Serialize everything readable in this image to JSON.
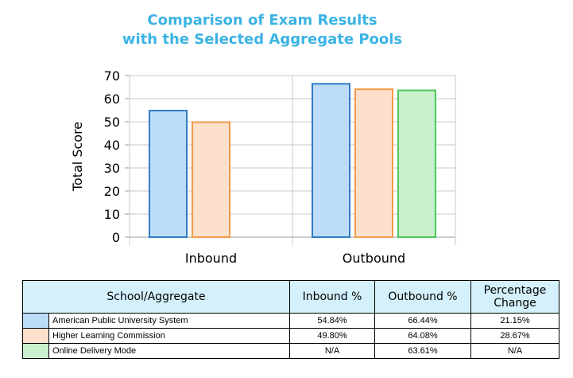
{
  "chart_data": {
    "type": "bar",
    "title_lines": [
      "Comparison of Exam Results",
      "with the Selected Aggregate Pools"
    ],
    "xlabel": "",
    "ylabel": "Total Score",
    "ylim": [
      0,
      70
    ],
    "yticks": [
      0,
      10,
      20,
      30,
      40,
      50,
      60,
      70
    ],
    "grid": true,
    "categories": [
      "Inbound",
      "Outbound"
    ],
    "series": [
      {
        "name": "American Public University System",
        "values": [
          54.84,
          66.44
        ],
        "fill": "#bddcf7",
        "stroke": "#2e7cc6"
      },
      {
        "name": "Higher Learning Commission",
        "values": [
          49.8,
          64.08
        ],
        "fill": "#fde0cc",
        "stroke": "#f39a4a"
      },
      {
        "name": "Online Delivery Mode",
        "values": [
          null,
          63.61
        ],
        "fill": "#c9f0cd",
        "stroke": "#4fc55a"
      }
    ]
  },
  "table": {
    "headers": [
      "School/Aggregate",
      "Inbound %",
      "Outbound %",
      "Percentage Change"
    ],
    "rows": [
      {
        "name": "American Public University System",
        "inbound": "54.84%",
        "outbound": "66.44%",
        "change": "21.15%",
        "color": "#bddcf7"
      },
      {
        "name": "Higher Learning Commission",
        "inbound": "49.80%",
        "outbound": "64.08%",
        "change": "28.67%",
        "color": "#fde0cc"
      },
      {
        "name": "Online Delivery Mode",
        "inbound": "N/A",
        "outbound": "63.61%",
        "change": "N/A",
        "color": "#c9f0cd"
      }
    ]
  }
}
